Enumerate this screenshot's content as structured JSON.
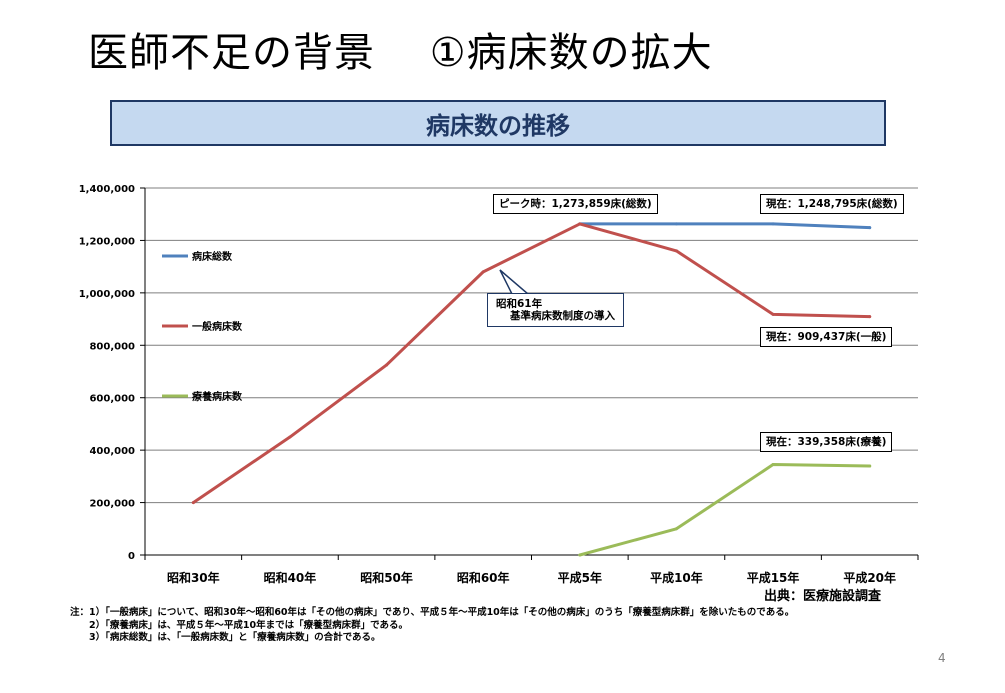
{
  "slide": {
    "title": "医師不足の背景　 ①病床数の拡大",
    "banner": "病床数の推移",
    "source": "出典：医療施設調査",
    "notes": [
      "注：1）「一般病床」について、昭和30年～昭和60年は「その他の病床」であり、平成５年～平成10年は「その他の病床」のうち「療養型病床群」を除いたものである。",
      "　　2）「療養病床」は、平成５年～平成10年までは「療養型病床群」である。",
      "　　3）「病床総数」は、「一般病床数」と「療養病床数」の合計である。"
    ],
    "page_number": "4"
  },
  "chart_data": {
    "type": "line",
    "categories": [
      "昭和30年",
      "昭和40年",
      "昭和50年",
      "昭和60年",
      "平成5年",
      "平成10年",
      "平成15年",
      "平成20年"
    ],
    "ylim": [
      0,
      1400000
    ],
    "yticks": [
      0,
      200000,
      400000,
      600000,
      800000,
      1000000,
      1200000,
      1400000
    ],
    "ytick_labels": [
      "0",
      "200,000",
      "400,000",
      "600,000",
      "800,000",
      "1,000,000",
      "1,200,000",
      "1,400,000"
    ],
    "grid": true,
    "series": [
      {
        "name": "病床総数",
        "color": "#4f81bd",
        "values": [
          null,
          null,
          null,
          null,
          1263000,
          1263000,
          1263000,
          1248795
        ]
      },
      {
        "name": "一般病床数",
        "color": "#c0504d",
        "values": [
          200000,
          450000,
          725000,
          1080000,
          1263000,
          1160000,
          918000,
          909437
        ]
      },
      {
        "name": "療養病床数",
        "color": "#9bbb59",
        "values": [
          null,
          null,
          null,
          null,
          0,
          100000,
          345000,
          339358
        ]
      }
    ],
    "annotations": {
      "peak": "ピーク時：1,273,859床(総数)",
      "current_total": "現在：1,248,795床(総数)",
      "current_general": "現在：909,437床(一般)",
      "current_longterm": "現在：339,358床(療養)",
      "showa61_line1": "昭和61年",
      "showa61_line2": "基準病床数制度の導入"
    }
  }
}
